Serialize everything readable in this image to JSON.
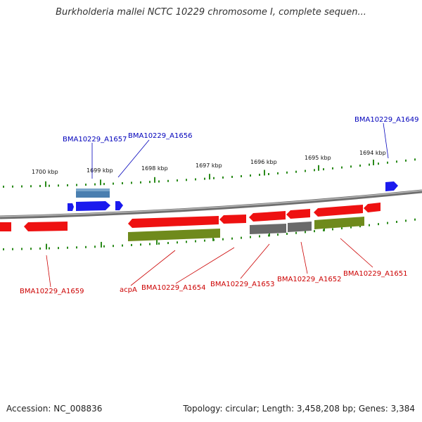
{
  "title": "Burkholderia mallei NCTC 10229 chromosome I, complete sequen...",
  "footer": {
    "accession": "Accession: NC_008836",
    "summary": "Topology: circular; Length: 3,458,208 bp; Genes: 3,384"
  },
  "colors": {
    "backbone": "#8a8a8a",
    "tick": "#2a8a1a",
    "forward_gene": "#1a1aee",
    "forward_gene_light": "#4a7fb0",
    "reverse_gene": "#ee1111",
    "cds": "#6f8a1c",
    "gray_feature": "#6a6a6a",
    "forward_label": "#0000bb",
    "reverse_label": "#cc0000"
  },
  "scale_labels": [
    "1700 kbp",
    "1699 kbp",
    "1698 kbp",
    "1697 kbp",
    "1696 kbp",
    "1695 kbp",
    "1694 kbp"
  ],
  "gene_labels": {
    "top": [
      "BMA10229_A1657",
      "BMA10229_A1656",
      "BMA10229_A1649"
    ],
    "bottom": [
      "BMA10229_A1659",
      "acpA",
      "BMA10229_A1654",
      "BMA10229_A1653",
      "BMA10229_A1652",
      "BMA10229_A1651"
    ]
  }
}
